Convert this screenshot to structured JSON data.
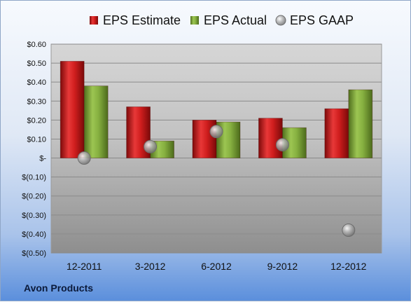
{
  "company": "Avon Products",
  "chart_data": {
    "type": "bar",
    "categories": [
      "12-2011",
      "3-2012",
      "6-2012",
      "9-2012",
      "12-2012"
    ],
    "series": [
      {
        "name": "EPS Estimate",
        "kind": "bar",
        "color": "#cc1f1f",
        "values": [
          0.51,
          0.27,
          0.2,
          0.21,
          0.26
        ]
      },
      {
        "name": "EPS Actual",
        "kind": "bar",
        "color": "#7fa83a",
        "values": [
          0.38,
          0.09,
          0.19,
          0.16,
          0.36
        ]
      },
      {
        "name": "EPS GAAP",
        "kind": "scatter",
        "color": "#a7a7a7",
        "values": [
          0.0,
          0.06,
          0.14,
          0.07,
          -0.38
        ]
      }
    ],
    "y_ticks": [
      "$0.60",
      "$0.50",
      "$0.40",
      "$0.30",
      "$0.20",
      "$0.10",
      "$-",
      "$(0.10)",
      "$(0.20)",
      "$(0.30)",
      "$(0.40)",
      "$(0.50)"
    ],
    "ylim": [
      -0.5,
      0.6
    ],
    "title": "",
    "xlabel": "",
    "ylabel": "",
    "legend": "top",
    "grid": true
  }
}
